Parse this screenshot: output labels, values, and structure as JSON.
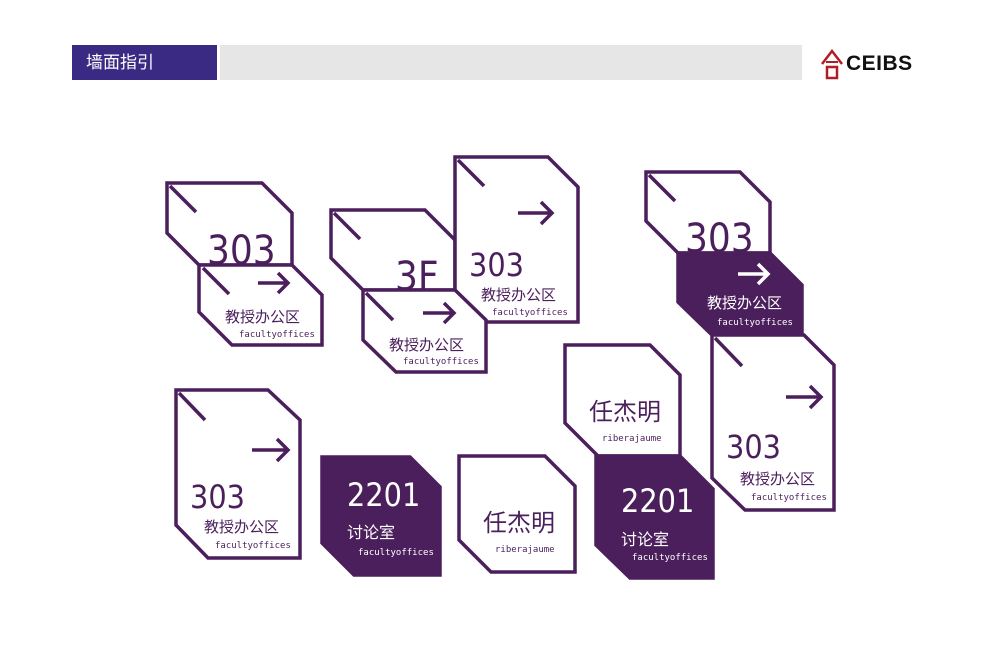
{
  "header": {
    "title": "墙面指引"
  },
  "logo": {
    "text": "CEIBS",
    "color": "#b01e23"
  },
  "colors": {
    "sign_purple": "#4b1f5c",
    "header_bg": "#3b2a84",
    "header_bar": "#e6e6e6"
  },
  "signs": [
    {
      "number": "303"
    },
    {
      "arrow": "arrow-right-icon",
      "label_cn": "教授办公区",
      "label_en": "facultyoffices"
    },
    {
      "number": "3F"
    },
    {
      "arrow": "arrow-right-icon",
      "label_cn": "教授办公区",
      "label_en": "facultyoffices"
    },
    {
      "arrow": "arrow-right-icon",
      "number": "303",
      "label_cn": "教授办公区",
      "label_en": "facultyoffices"
    },
    {
      "number": "303"
    },
    {
      "arrow": "arrow-right-icon",
      "label_cn": "教授办公区",
      "label_en": "facultyoffices",
      "style": "dark"
    },
    {
      "arrow": "arrow-right-icon",
      "number": "303",
      "label_cn": "教授办公区",
      "label_en": "facultyoffices"
    },
    {
      "arrow": "arrow-right-icon",
      "number": "303",
      "label_cn": "教授办公区",
      "label_en": "facultyoffices"
    },
    {
      "number": "2201",
      "label_cn": "讨论室",
      "label_en": "facultyoffices",
      "style": "dark"
    },
    {
      "name_cn": "任杰明",
      "name_en": "riberajaume"
    },
    {
      "name_cn": "任杰明",
      "name_en": "riberajaume"
    },
    {
      "number": "2201",
      "label_cn": "讨论室",
      "label_en": "facultyoffices",
      "style": "dark"
    }
  ]
}
